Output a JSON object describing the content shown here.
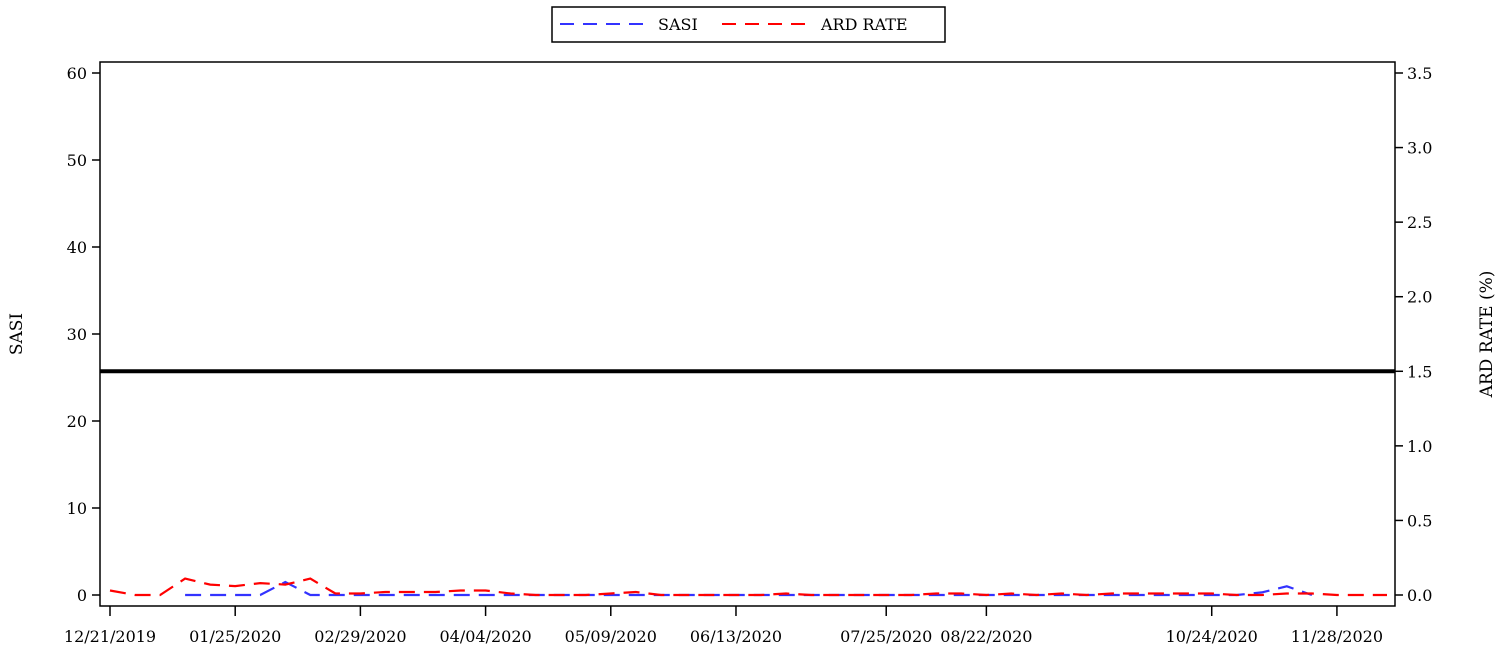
{
  "chart_data": {
    "type": "line",
    "x": [
      "12/21/2019",
      "12/28/2019",
      "01/04/2020",
      "01/11/2020",
      "01/18/2020",
      "01/25/2020",
      "02/01/2020",
      "02/08/2020",
      "02/15/2020",
      "02/22/2020",
      "02/29/2020",
      "03/07/2020",
      "03/14/2020",
      "03/21/2020",
      "03/28/2020",
      "04/04/2020",
      "04/11/2020",
      "04/18/2020",
      "04/25/2020",
      "05/02/2020",
      "05/09/2020",
      "05/16/2020",
      "05/23/2020",
      "05/30/2020",
      "06/06/2020",
      "06/13/2020",
      "06/20/2020",
      "06/27/2020",
      "07/04/2020",
      "07/11/2020",
      "07/18/2020",
      "07/25/2020",
      "08/01/2020",
      "08/08/2020",
      "08/15/2020",
      "08/22/2020",
      "08/29/2020",
      "09/05/2020",
      "09/12/2020",
      "09/19/2020",
      "09/26/2020",
      "10/03/2020",
      "10/10/2020",
      "10/17/2020",
      "10/24/2020",
      "10/31/2020",
      "11/07/2020",
      "11/14/2020",
      "11/21/2020",
      "11/28/2020",
      "12/05/2020",
      "12/12/2020"
    ],
    "xticks": [
      "12/21/2019",
      "01/25/2020",
      "02/29/2020",
      "04/04/2020",
      "05/09/2020",
      "06/13/2020",
      "07/25/2020",
      "08/22/2020",
      "10/24/2020",
      "11/28/2020"
    ],
    "series": [
      {
        "name": "SASI",
        "axis": "left",
        "color": "#3333ff",
        "values": [
          null,
          null,
          null,
          0,
          0,
          0,
          0,
          1.5,
          0,
          0,
          0,
          0,
          0,
          0,
          0,
          0,
          0,
          0,
          0,
          0,
          0,
          0,
          0,
          0,
          0,
          0,
          0,
          0,
          0,
          0,
          0,
          0,
          0,
          0,
          0,
          0,
          0,
          0,
          0,
          0,
          0,
          0,
          0,
          0,
          0,
          0,
          0.3,
          1,
          0,
          null,
          null,
          null
        ]
      },
      {
        "name": "ARD RATE",
        "axis": "right",
        "color": "#ff0000",
        "values": [
          0.03,
          0,
          0,
          0.11,
          0.07,
          0.06,
          0.08,
          0.07,
          0.11,
          0.01,
          0.01,
          0.02,
          0.02,
          0.02,
          0.03,
          0.03,
          0.01,
          0,
          0,
          0,
          0.01,
          0.02,
          0,
          0,
          0,
          0,
          0,
          0.01,
          0,
          0,
          0,
          0,
          0,
          0.01,
          0.01,
          0,
          0.01,
          0,
          0.01,
          0,
          0.01,
          0.01,
          0.01,
          0.01,
          0.01,
          0,
          0,
          0.01,
          0.01,
          0,
          0,
          0
        ]
      }
    ],
    "reference_line": {
      "axis": "right",
      "value": 1.5
    },
    "ylabel_left": "SASI",
    "ylabel_right": "ARD RATE (%)",
    "ylim_left": [
      0,
      60
    ],
    "ylim_right": [
      0,
      3.5
    ],
    "yticks_left": [
      0,
      10,
      20,
      30,
      40,
      50,
      60
    ],
    "yticks_right": [
      "0.0",
      "0.5",
      "1.0",
      "1.5",
      "2.0",
      "2.5",
      "3.0",
      "3.5"
    ],
    "legend": {
      "position": "top-center",
      "entries": [
        "SASI",
        "ARD RATE"
      ]
    },
    "grid": false
  }
}
